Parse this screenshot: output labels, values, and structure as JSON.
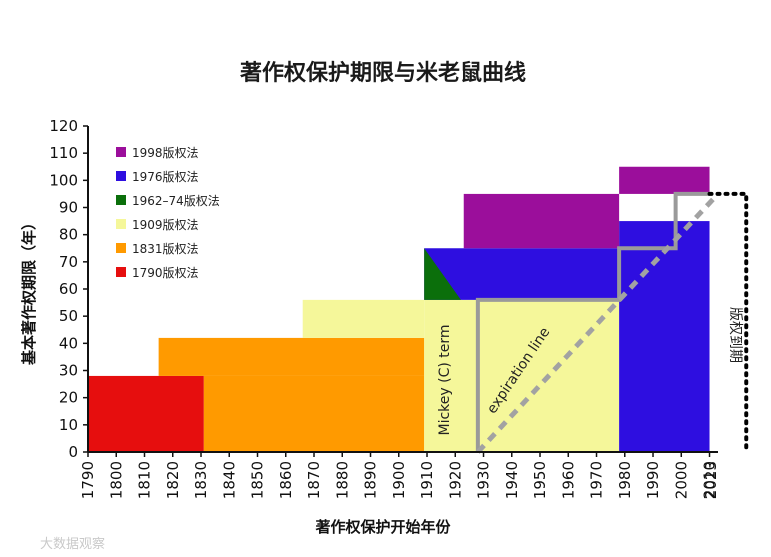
{
  "chart_data": {
    "type": "area",
    "title": "著作权保护期限与米老鼠曲线",
    "xlabel": "著作权保护开始年份",
    "ylabel": "基本著作权期限（年）",
    "xlim": [
      1790,
      2013
    ],
    "ylim": [
      0,
      120
    ],
    "x_ticks": [
      "1790",
      "1800",
      "1810",
      "1820",
      "1830",
      "1840",
      "1850",
      "1860",
      "1870",
      "1880",
      "1890",
      "1900",
      "1910",
      "1920",
      "1930",
      "1940",
      "1950",
      "1960",
      "1970",
      "1980",
      "1990",
      "2000",
      "2010",
      "2023"
    ],
    "y_ticks": [
      "0",
      "10",
      "20",
      "30",
      "40",
      "50",
      "60",
      "70",
      "80",
      "90",
      "100",
      "110",
      "120"
    ],
    "grid": false,
    "legend_position": "top-left",
    "series": [
      {
        "name": "1998版权法",
        "color": "#9b0e9b",
        "segments": [
          {
            "x0": 1923,
            "x1": 1978,
            "y0": 75,
            "y1": 95
          },
          {
            "x0": 1978,
            "x1": 2010,
            "y0": 95,
            "y1": 105
          }
        ]
      },
      {
        "name": "1976版权法",
        "color": "#2e0ee0",
        "segments": [
          {
            "x0": 1909,
            "x1": 1978,
            "y0": 56,
            "y1": 75
          },
          {
            "x0": 1978,
            "x1": 2010,
            "y0": 0,
            "y1": 85
          }
        ]
      },
      {
        "name": "1962–74版权法",
        "color": "#0b6f0b",
        "segments": []
      },
      {
        "name": "1909版权法",
        "color": "#f5f79a",
        "segments": [
          {
            "x0": 1866,
            "x1": 1909,
            "y0": 42,
            "y1": 56
          },
          {
            "x0": 1909,
            "x1": 1978,
            "y0": 0,
            "y1": 56
          }
        ]
      },
      {
        "name": "1831版权法",
        "color": "#ff9a00",
        "segments": [
          {
            "x0": 1815,
            "x1": 1909,
            "y0": 28,
            "y1": 42
          },
          {
            "x0": 1831,
            "x1": 1909,
            "y0": 0,
            "y1": 28
          }
        ]
      },
      {
        "name": "1790版权法",
        "color": "#e60e0e",
        "segments": [
          {
            "x0": 1790,
            "x1": 1831,
            "y0": 0,
            "y1": 28
          }
        ]
      }
    ],
    "green_triangle": [
      [
        1909,
        75
      ],
      [
        1909,
        56
      ],
      [
        1922,
        56
      ]
    ],
    "mickey_term": [
      [
        1928,
        0
      ],
      [
        1928,
        56
      ],
      [
        1978,
        56
      ],
      [
        1978,
        75
      ],
      [
        1998,
        75
      ],
      [
        1998,
        95
      ],
      [
        2010,
        95
      ]
    ],
    "expiration_line": [
      [
        1928,
        0
      ],
      [
        2013,
        95
      ]
    ],
    "horizon_line": [
      [
        2010,
        95
      ],
      [
        2023,
        95
      ],
      [
        2023,
        0
      ]
    ],
    "annotations": {
      "mickey": "Mickey (C) term",
      "expiration": "expiration line",
      "side": "版权到期"
    },
    "watermark": "大数据观察"
  }
}
